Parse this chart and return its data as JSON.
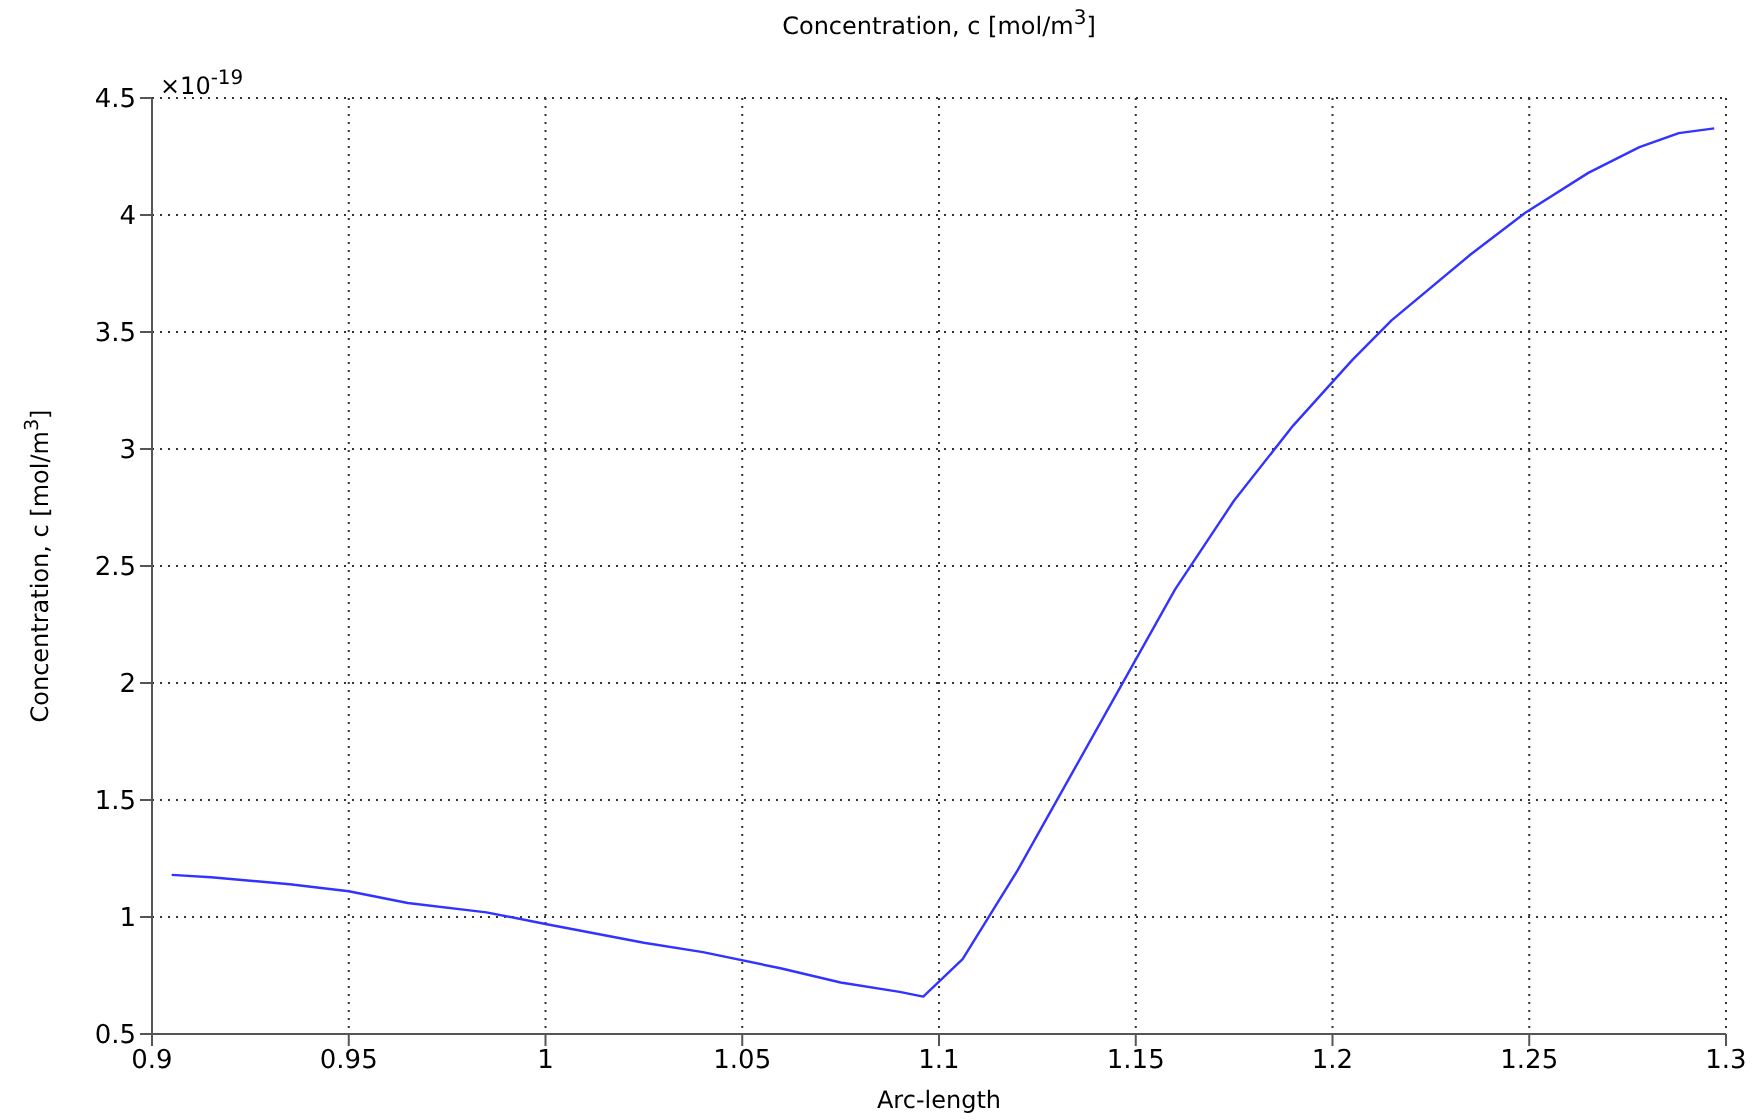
{
  "chart_data": {
    "type": "line",
    "title": "Concentration, c [mol/m$^{3}$]",
    "xlabel": "Arc-length",
    "ylabel": "Concentration, c [mol/m$^{3}$]",
    "annotations": [
      "×10$^{-19}$"
    ],
    "x": [
      0.905,
      0.915,
      0.935,
      0.95,
      0.965,
      0.985,
      1.0,
      1.025,
      1.04,
      1.06,
      1.075,
      1.09,
      1.096,
      1.106,
      1.12,
      1.135,
      1.15,
      1.16,
      1.175,
      1.19,
      1.205,
      1.215,
      1.235,
      1.249,
      1.265,
      1.278,
      1.288,
      1.297
    ],
    "series": [
      {
        "color": "#3333ff",
        "values": [
          1.18,
          1.17,
          1.14,
          1.11,
          1.06,
          1.02,
          0.97,
          0.89,
          0.85,
          0.78,
          0.72,
          0.68,
          0.66,
          0.82,
          1.2,
          1.65,
          2.1,
          2.4,
          2.78,
          3.1,
          3.38,
          3.55,
          3.83,
          4.01,
          4.18,
          4.29,
          4.35,
          4.37
        ]
      }
    ],
    "xlim": [
      0.9,
      1.3
    ],
    "xticks": [
      0.9,
      0.95,
      1,
      1.05,
      1.1,
      1.15,
      1.2,
      1.25,
      1.3
    ],
    "ylim": [
      0.5,
      4.5
    ],
    "yticks": [
      0.5,
      1,
      1.5,
      2,
      2.5,
      3,
      3.5,
      4,
      4.5
    ],
    "grid": true,
    "line_style": "solid"
  }
}
